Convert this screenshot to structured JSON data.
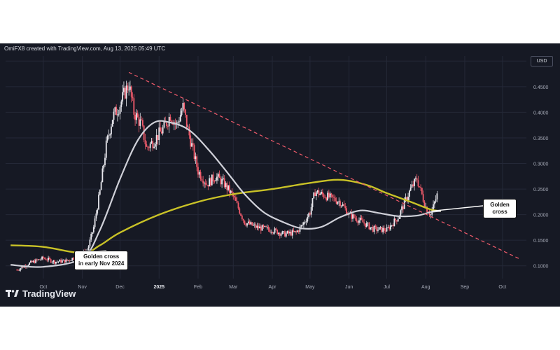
{
  "header": {
    "text": "OmiFX8 created with TradingView.com, Aug 13, 2025 05:49 UTC"
  },
  "currency": "USD",
  "brand": {
    "name": "TradingView"
  },
  "annotations": {
    "left_callout": {
      "line1": "Golden cross",
      "line2": "in early Nov 2024"
    },
    "right_callout": {
      "line1": "Golden",
      "line2": "cross"
    }
  },
  "colors": {
    "background": "#161924",
    "up_candle": "#e8e8ee",
    "down_candle": "#f25b6b",
    "fast_ma": "#cfd0d8",
    "slow_ma": "#c9c227",
    "trendline": "#f25b6b",
    "grid": "#242837",
    "axis_text": "#a7abb8"
  },
  "chart_data": {
    "type": "line",
    "title": "",
    "ylabel": "USD",
    "scale": "linear",
    "ylim": [
      0.075,
      0.51
    ],
    "x_ticks": [
      "Oct",
      "Nov",
      "Dec",
      "2025",
      "Feb",
      "Mar",
      "Apr",
      "May",
      "Jun",
      "Jul",
      "Aug",
      "Sep",
      "Oct"
    ],
    "x_tick_dates": [
      "2024-10-01",
      "2024-11-01",
      "2024-12-01",
      "2025-01-01",
      "2025-02-01",
      "2025-03-01",
      "2025-04-01",
      "2025-05-01",
      "2025-06-01",
      "2025-07-01",
      "2025-08-01",
      "2025-09-01",
      "2025-10-01"
    ],
    "y_ticks": [
      "0.1000",
      "0.1500",
      "0.2000",
      "0.2500",
      "0.3000",
      "0.3500",
      "0.4000",
      "0.4500",
      "0.5000"
    ],
    "y_tick_values": [
      0.1,
      0.15,
      0.2,
      0.25,
      0.3,
      0.35,
      0.4,
      0.45,
      0.5
    ],
    "grid": true,
    "series": [
      {
        "kind": "price_close",
        "points": [
          [
            "2024-09-10",
            0.092
          ],
          [
            "2024-09-20",
            0.105
          ],
          [
            "2024-10-01",
            0.115
          ],
          [
            "2024-10-10",
            0.108
          ],
          [
            "2024-10-20",
            0.11
          ],
          [
            "2024-10-30",
            0.121
          ],
          [
            "2024-11-05",
            0.13
          ],
          [
            "2024-11-10",
            0.175
          ],
          [
            "2024-11-15",
            0.245
          ],
          [
            "2024-11-20",
            0.335
          ],
          [
            "2024-11-25",
            0.39
          ],
          [
            "2024-12-01",
            0.415
          ],
          [
            "2024-12-05",
            0.44
          ],
          [
            "2024-12-08",
            0.455
          ],
          [
            "2024-12-12",
            0.4
          ],
          [
            "2024-12-18",
            0.375
          ],
          [
            "2024-12-22",
            0.33
          ],
          [
            "2024-12-28",
            0.345
          ],
          [
            "2025-01-05",
            0.37
          ],
          [
            "2025-01-10",
            0.395
          ],
          [
            "2025-01-15",
            0.375
          ],
          [
            "2025-01-20",
            0.41
          ],
          [
            "2025-01-25",
            0.355
          ],
          [
            "2025-02-01",
            0.285
          ],
          [
            "2025-02-08",
            0.26
          ],
          [
            "2025-02-15",
            0.275
          ],
          [
            "2025-02-22",
            0.26
          ],
          [
            "2025-03-01",
            0.235
          ],
          [
            "2025-03-10",
            0.185
          ],
          [
            "2025-03-20",
            0.175
          ],
          [
            "2025-04-01",
            0.17
          ],
          [
            "2025-04-10",
            0.162
          ],
          [
            "2025-04-20",
            0.165
          ],
          [
            "2025-04-25",
            0.18
          ],
          [
            "2025-05-01",
            0.205
          ],
          [
            "2025-05-05",
            0.245
          ],
          [
            "2025-05-15",
            0.235
          ],
          [
            "2025-05-25",
            0.225
          ],
          [
            "2025-06-01",
            0.2
          ],
          [
            "2025-06-10",
            0.188
          ],
          [
            "2025-06-20",
            0.172
          ],
          [
            "2025-07-01",
            0.17
          ],
          [
            "2025-07-10",
            0.195
          ],
          [
            "2025-07-20",
            0.25
          ],
          [
            "2025-07-25",
            0.27
          ],
          [
            "2025-08-01",
            0.215
          ],
          [
            "2025-08-05",
            0.2
          ],
          [
            "2025-08-10",
            0.238
          ]
        ]
      },
      {
        "kind": "moving_average_fast",
        "points": [
          [
            "2024-09-05",
            0.102
          ],
          [
            "2024-10-01",
            0.098
          ],
          [
            "2024-11-01",
            0.115
          ],
          [
            "2024-11-15",
            0.17
          ],
          [
            "2024-12-01",
            0.27
          ],
          [
            "2024-12-15",
            0.345
          ],
          [
            "2024-12-28",
            0.38
          ],
          [
            "2025-01-10",
            0.38
          ],
          [
            "2025-01-25",
            0.365
          ],
          [
            "2025-02-10",
            0.325
          ],
          [
            "2025-02-25",
            0.28
          ],
          [
            "2025-03-10",
            0.24
          ],
          [
            "2025-03-25",
            0.205
          ],
          [
            "2025-04-10",
            0.185
          ],
          [
            "2025-04-25",
            0.173
          ],
          [
            "2025-05-10",
            0.176
          ],
          [
            "2025-05-25",
            0.195
          ],
          [
            "2025-06-10",
            0.208
          ],
          [
            "2025-06-25",
            0.203
          ],
          [
            "2025-07-10",
            0.197
          ],
          [
            "2025-07-25",
            0.198
          ],
          [
            "2025-08-05",
            0.205
          ],
          [
            "2025-08-13",
            0.207
          ]
        ]
      },
      {
        "kind": "moving_average_slow",
        "points": [
          [
            "2024-09-05",
            0.14
          ],
          [
            "2024-10-01",
            0.137
          ],
          [
            "2024-11-01",
            0.125
          ],
          [
            "2024-11-15",
            0.14
          ],
          [
            "2024-12-01",
            0.165
          ],
          [
            "2025-01-01",
            0.2
          ],
          [
            "2025-02-01",
            0.225
          ],
          [
            "2025-03-01",
            0.24
          ],
          [
            "2025-04-01",
            0.25
          ],
          [
            "2025-05-01",
            0.262
          ],
          [
            "2025-05-25",
            0.268
          ],
          [
            "2025-06-15",
            0.258
          ],
          [
            "2025-07-01",
            0.242
          ],
          [
            "2025-07-20",
            0.225
          ],
          [
            "2025-08-05",
            0.21
          ],
          [
            "2025-08-13",
            0.207
          ]
        ]
      },
      {
        "kind": "trendline",
        "points": [
          [
            "2024-12-08",
            0.478
          ],
          [
            "2025-10-15",
            0.113
          ]
        ]
      }
    ]
  }
}
